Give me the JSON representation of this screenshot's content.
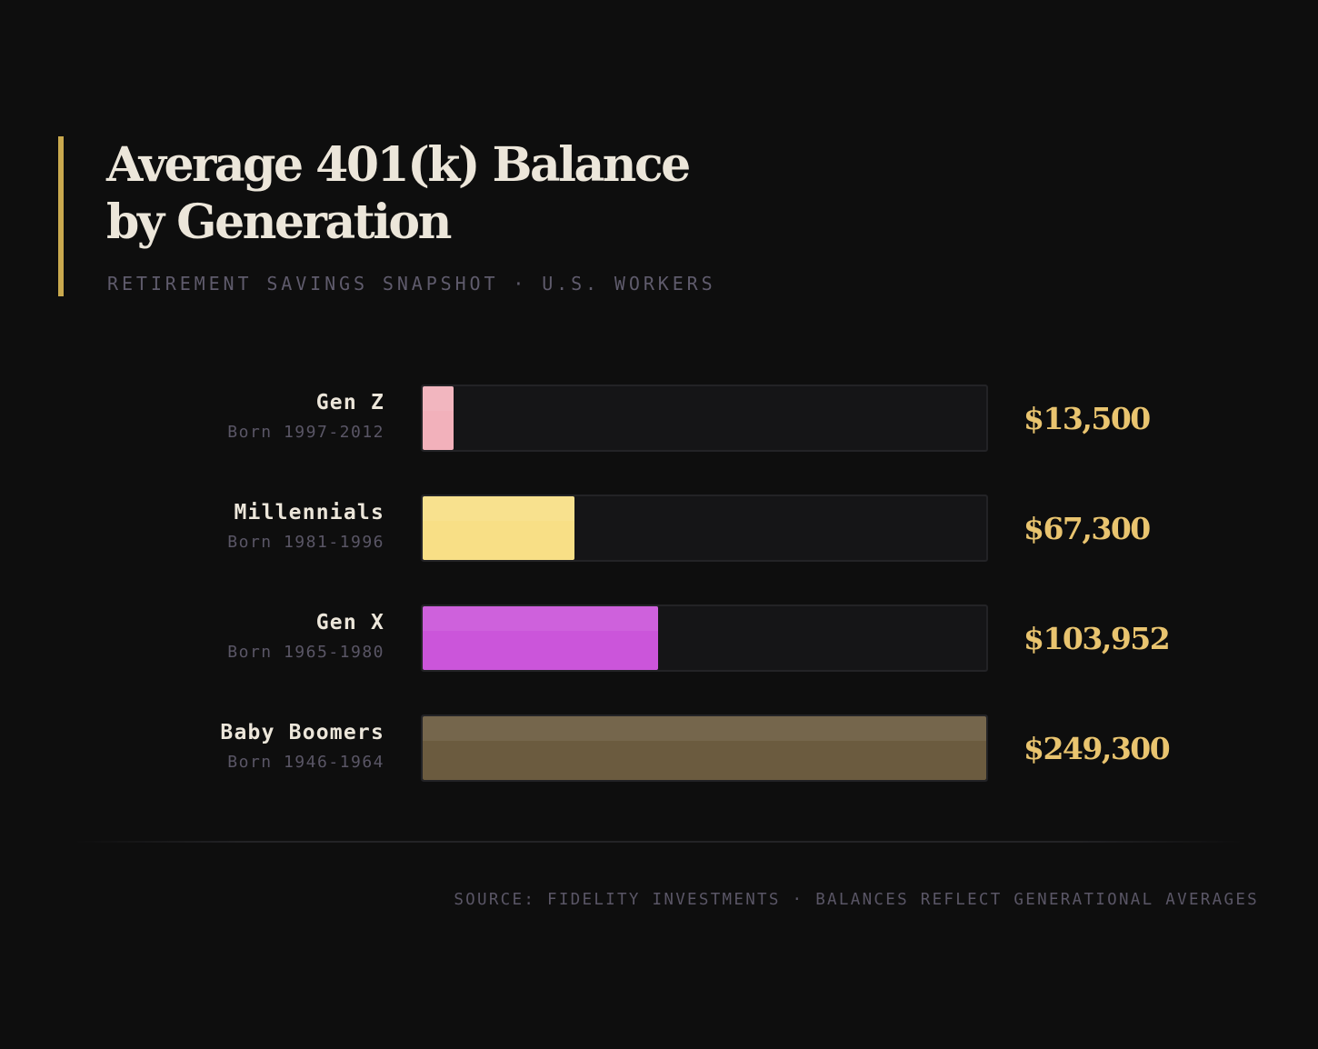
{
  "header": {
    "title_line1": "Average 401(k) Balance",
    "title_line2": "by Generation",
    "subtitle": "RETIREMENT SAVINGS SNAPSHOT · U.S. WORKERS"
  },
  "footer": {
    "source": "SOURCE: FIDELITY INVESTMENTS · BALANCES REFLECT GENERATIONAL AVERAGES"
  },
  "colors": {
    "accent": "#c9a94e",
    "value_text": "#e9c46f"
  },
  "chart_data": {
    "type": "bar",
    "orientation": "horizontal",
    "title": "Average 401(k) Balance by Generation",
    "subtitle": "RETIREMENT SAVINGS SNAPSHOT · U.S. WORKERS",
    "xlim": [
      0,
      249300
    ],
    "grid": false,
    "legend": "none",
    "categories": [
      {
        "name": "Gen Z",
        "born": "Born 1997-2012",
        "value": 13500,
        "label": "$13,500",
        "color": "#f2b1bb"
      },
      {
        "name": "Millennials",
        "born": "Born 1981-1996",
        "value": 67300,
        "label": "$67,300",
        "color": "#f8df86"
      },
      {
        "name": "Gen X",
        "born": "Born 1965-1980",
        "value": 103952,
        "label": "$103,952",
        "color": "#cb55da"
      },
      {
        "name": "Baby Boomers",
        "born": "Born 1946-1964",
        "value": 249300,
        "label": "$249,300",
        "color": "#6b5b3f"
      }
    ]
  }
}
